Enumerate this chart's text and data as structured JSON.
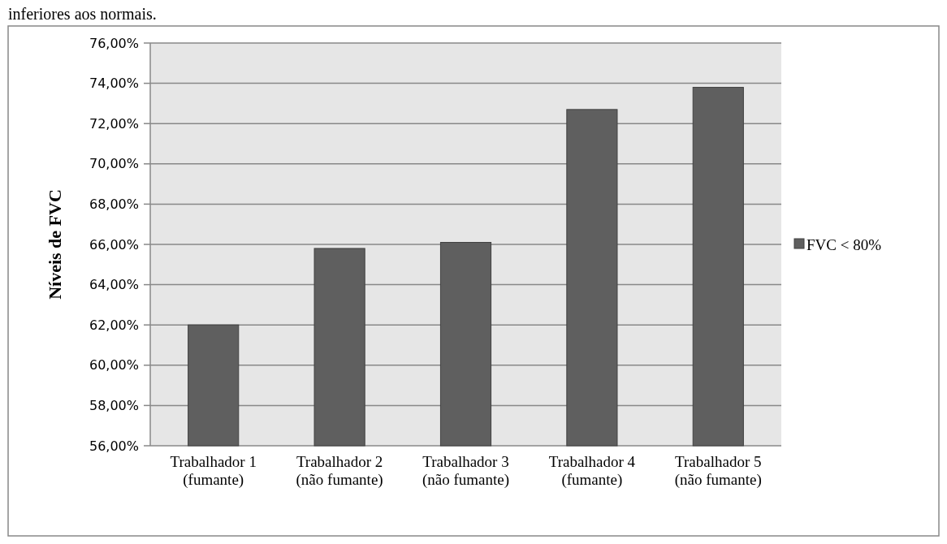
{
  "chart_data": {
    "type": "bar",
    "ylabel": "Níveis de FVC",
    "annotations": [
      "inferiores aos normais."
    ],
    "categories": [
      "Trabalhador 1\n(fumante)",
      "Trabalhador 2\n(não fumante)",
      "Trabalhador 3\n(não fumante)",
      "Trabalhador 4\n(fumante)",
      "Trabalhador 5\n(não fumante)"
    ],
    "series": [
      {
        "name": "FVC < 80%",
        "color": "#5f5f5f",
        "values": [
          62.0,
          65.8,
          66.1,
          72.7,
          73.8
        ]
      }
    ],
    "ylim": [
      56,
      76
    ],
    "yticks": [
      {
        "value": 56,
        "label": "56,00%"
      },
      {
        "value": 58,
        "label": "58,00%"
      },
      {
        "value": 60,
        "label": "60,00%"
      },
      {
        "value": 62,
        "label": "62,00%"
      },
      {
        "value": 64,
        "label": "64,00%"
      },
      {
        "value": 66,
        "label": "66,00%"
      },
      {
        "value": 68,
        "label": "68,00%"
      },
      {
        "value": 70,
        "label": "70,00%"
      },
      {
        "value": 72,
        "label": "72,00%"
      },
      {
        "value": 74,
        "label": "74,00%"
      },
      {
        "value": 76,
        "label": "76,00%"
      }
    ],
    "grid": "y",
    "legend": "right"
  }
}
